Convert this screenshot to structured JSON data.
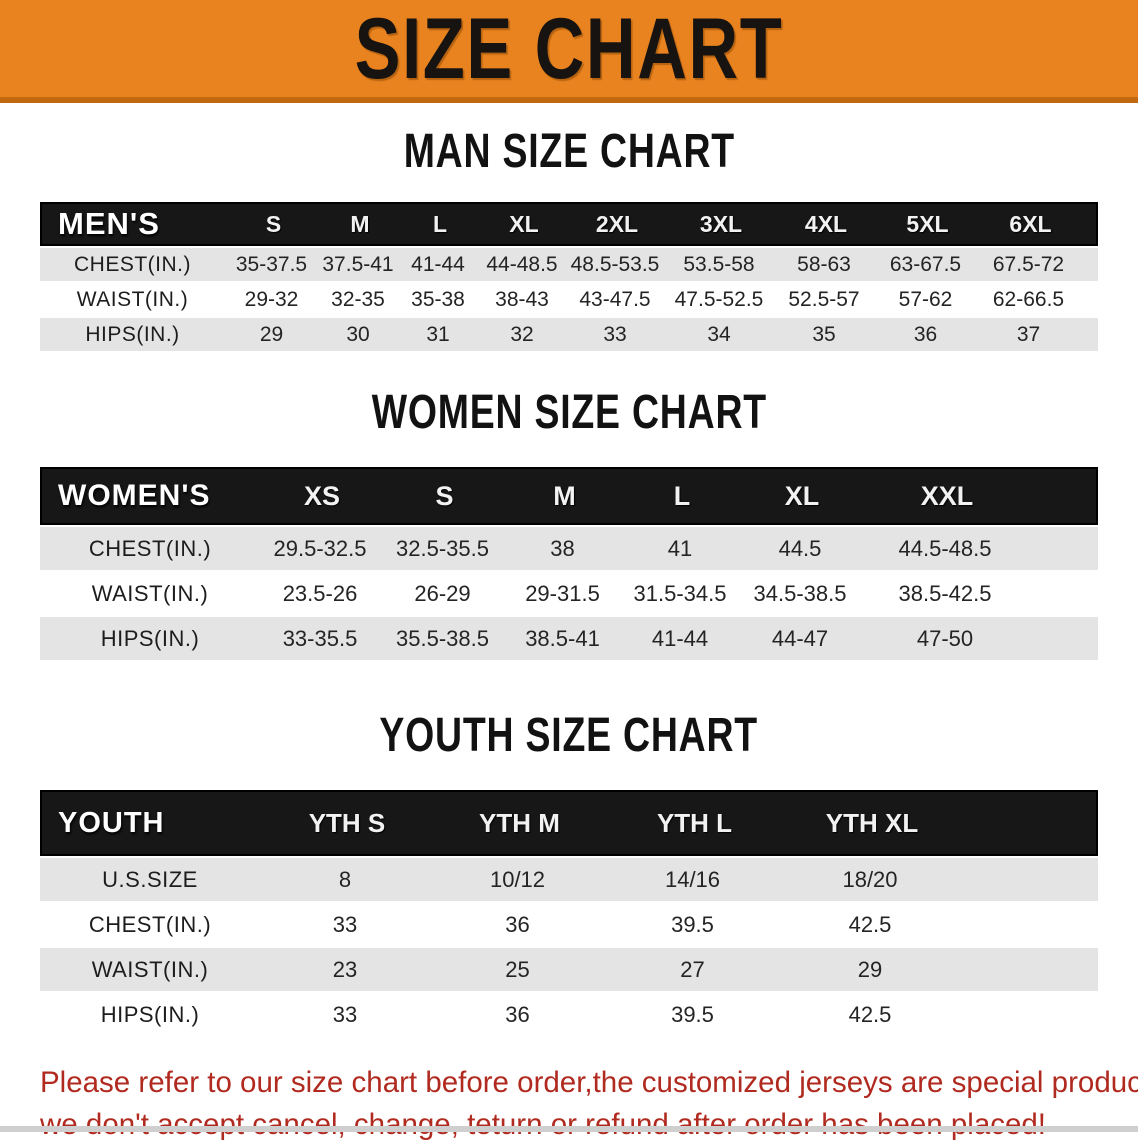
{
  "banner": {
    "title": "SIZE CHART"
  },
  "colors": {
    "accent": "#e8831f",
    "accent_dark": "#c2690f",
    "header_band": "#171717",
    "row_gray": "#e4e4e5",
    "alert_red": "#b12a20"
  },
  "sections": [
    {
      "heading": "MAN SIZE CHART",
      "table": {
        "corner": "MEN'S",
        "columns": [
          "S",
          "M",
          "L",
          "XL",
          "2XL",
          "3XL",
          "4XL",
          "5XL",
          "6XL"
        ],
        "rows": [
          {
            "label": "CHEST(IN.)",
            "values": [
              "35-37.5",
              "37.5-41",
              "41-44",
              "44-48.5",
              "48.5-53.5",
              "53.5-58",
              "58-63",
              "63-67.5",
              "67.5-72"
            ]
          },
          {
            "label": "WAIST(IN.)",
            "values": [
              "29-32",
              "32-35",
              "35-38",
              "38-43",
              "43-47.5",
              "47.5-52.5",
              "52.5-57",
              "57-62",
              "62-66.5"
            ]
          },
          {
            "label": "HIPS(IN.)",
            "values": [
              "29",
              "30",
              "31",
              "32",
              "33",
              "34",
              "35",
              "36",
              "37"
            ]
          }
        ],
        "row_shading": [
          "shade",
          "plain",
          "shade"
        ]
      }
    },
    {
      "heading": "WOMEN SIZE CHART",
      "table": {
        "corner": "WOMEN'S",
        "columns": [
          "XS",
          "S",
          "M",
          "L",
          "XL",
          "XXL"
        ],
        "rows": [
          {
            "label": "CHEST(IN.)",
            "values": [
              "29.5-32.5",
              "32.5-35.5",
              "38",
              "41",
              "44.5",
              "44.5-48.5"
            ]
          },
          {
            "label": "WAIST(IN.)",
            "values": [
              "23.5-26",
              "26-29",
              "29-31.5",
              "31.5-34.5",
              "34.5-38.5",
              "38.5-42.5"
            ]
          },
          {
            "label": "HIPS(IN.)",
            "values": [
              "33-35.5",
              "35.5-38.5",
              "38.5-41",
              "41-44",
              "44-47",
              "47-50"
            ]
          }
        ],
        "row_shading": [
          "shade",
          "plain",
          "shade"
        ]
      }
    },
    {
      "heading": "YOUTH SIZE CHART",
      "table": {
        "corner": "YOUTH",
        "columns": [
          "YTH S",
          "YTH M",
          "YTH L",
          "YTH XL"
        ],
        "rows": [
          {
            "label": "U.S.SIZE",
            "values": [
              "8",
              "10/12",
              "14/16",
              "18/20"
            ]
          },
          {
            "label": "CHEST(IN.)",
            "values": [
              "33",
              "36",
              "39.5",
              "42.5"
            ]
          },
          {
            "label": "WAIST(IN.)",
            "values": [
              "23",
              "25",
              "27",
              "29"
            ]
          },
          {
            "label": "HIPS(IN.)",
            "values": [
              "33",
              "36",
              "39.5",
              "42.5"
            ]
          }
        ],
        "row_shading": [
          "shade",
          "plain",
          "shade",
          "plain"
        ]
      }
    }
  ],
  "footer": {
    "line1": "Please refer to our size chart before order,the customized jerseys are special products,",
    "line2": "we don't accept cancel, change, teturn or refund after order has been placed!"
  }
}
